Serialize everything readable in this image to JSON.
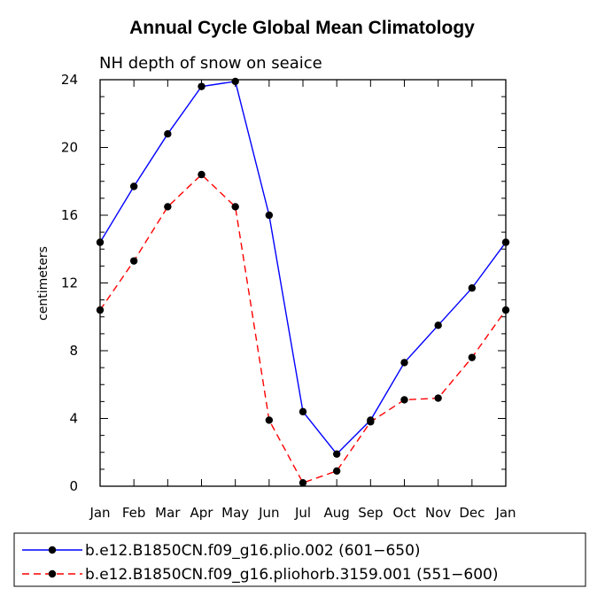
{
  "chart_data": {
    "type": "line",
    "title": "Annual Cycle Global Mean Climatology",
    "subtitle": "NH depth of snow on seaice",
    "xlabel": "",
    "ylabel": "centimeters",
    "categories": [
      "Jan",
      "Feb",
      "Mar",
      "Apr",
      "May",
      "Jun",
      "Jul",
      "Aug",
      "Sep",
      "Oct",
      "Nov",
      "Dec",
      "Jan"
    ],
    "ylim": [
      0,
      24
    ],
    "yticks": [
      "0",
      "4",
      "8",
      "12",
      "16",
      "20",
      "24"
    ],
    "legend_position": "bottom",
    "series": [
      {
        "name": "b.e12.B1850CN.f09_g16.plio.002 (601−650)",
        "color": "#0000ff",
        "style": "solid",
        "marker": "filled-circle",
        "values": [
          14.4,
          17.7,
          20.8,
          23.6,
          23.9,
          16.0,
          4.4,
          1.9,
          3.9,
          7.3,
          9.5,
          11.7,
          14.4
        ]
      },
      {
        "name": "b.e12.B1850CN.f09_g16.pliohorb.3159.001 (551−600)",
        "color": "#ff0000",
        "style": "dashed",
        "marker": "filled-circle",
        "values": [
          10.4,
          13.3,
          16.5,
          18.4,
          16.5,
          3.9,
          0.2,
          0.9,
          3.8,
          5.1,
          5.2,
          7.6,
          10.4
        ]
      }
    ]
  }
}
